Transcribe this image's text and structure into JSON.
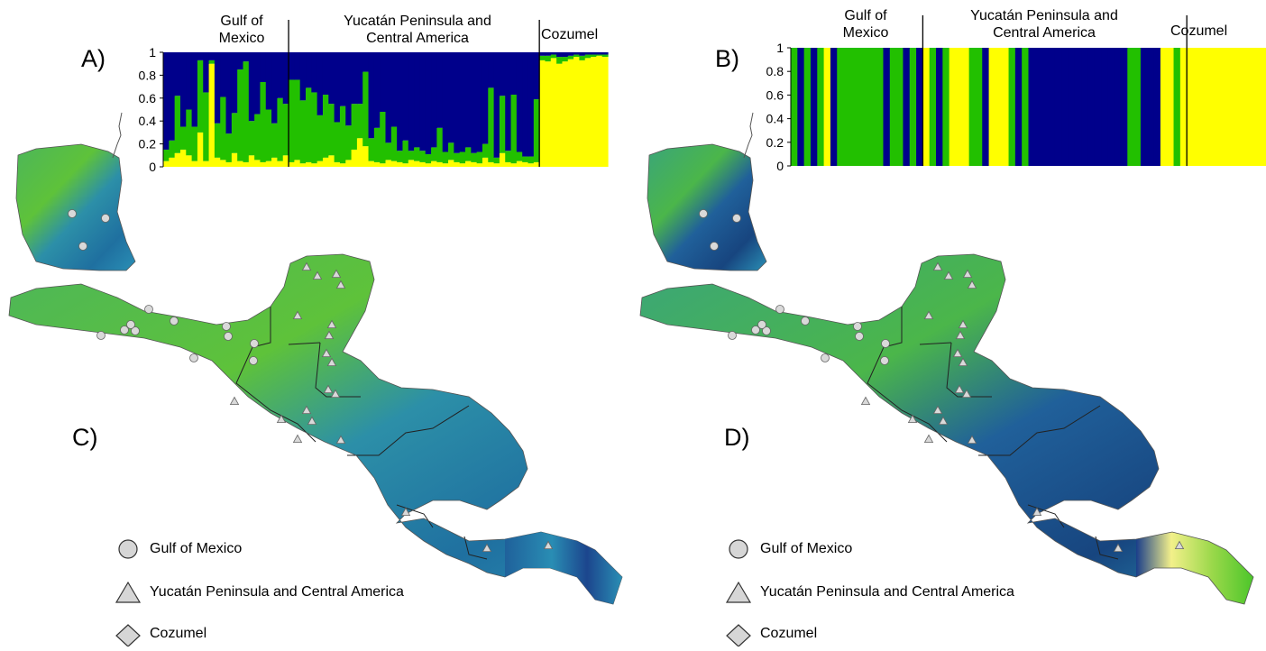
{
  "panels": {
    "a": "A)",
    "b": "B)",
    "c": "C)",
    "d": "D)"
  },
  "region_headers": {
    "gulf": "Gulf of Mexico",
    "yucatan": "Yucatán Peninsula and Central America",
    "cozumel": "Cozumel"
  },
  "legend": [
    {
      "symbol": "circle",
      "label": "Gulf of Mexico"
    },
    {
      "symbol": "triangle",
      "label": "Yucatán Peninsula and Central America"
    },
    {
      "symbol": "diamond",
      "label": "Cozumel"
    }
  ],
  "colors": {
    "cluster_blue": "#00008B",
    "cluster_green": "#22C000",
    "cluster_yellow": "#FFFF00",
    "map_dark": "#0a1e7a",
    "map_teal": "#2a8fb5",
    "map_green": "#4cc62a",
    "map_yellow": "#f5f58a",
    "marker_fill": "#d9d9d9"
  },
  "chart_data": [
    {
      "panel": "A)",
      "type": "bar",
      "stacked": true,
      "ylim": [
        0,
        1
      ],
      "yticks": [
        "0",
        "0.2",
        "0.4",
        "0.6",
        "0.8",
        "1"
      ],
      "groups": [
        {
          "name": "Gulf of Mexico",
          "count": 22
        },
        {
          "name": "Yucatán Peninsula and Central America",
          "count": 44
        },
        {
          "name": "Cozumel",
          "count": 12
        }
      ],
      "series_order": [
        "yellow",
        "green",
        "blue"
      ],
      "yellow": [
        0.05,
        0.08,
        0.12,
        0.15,
        0.1,
        0.05,
        0.3,
        0.05,
        0.9,
        0.08,
        0.06,
        0.04,
        0.12,
        0.05,
        0.04,
        0.1,
        0.06,
        0.04,
        0.05,
        0.08,
        0.05,
        0.1,
        0.04,
        0.06,
        0.03,
        0.04,
        0.03,
        0.05,
        0.08,
        0.1,
        0.04,
        0.03,
        0.06,
        0.15,
        0.25,
        0.18,
        0.05,
        0.04,
        0.03,
        0.06,
        0.05,
        0.04,
        0.03,
        0.06,
        0.05,
        0.04,
        0.03,
        0.05,
        0.04,
        0.03,
        0.06,
        0.04,
        0.03,
        0.05,
        0.04,
        0.03,
        0.08,
        0.04,
        0.03,
        0.12,
        0.04,
        0.03,
        0.05,
        0.04,
        0.03,
        0.04,
        0.93,
        0.92,
        0.95,
        0.9,
        0.92,
        0.94,
        0.96,
        0.93,
        0.95,
        0.96,
        0.97,
        0.96
      ],
      "green": [
        0.1,
        0.15,
        0.5,
        0.2,
        0.4,
        0.3,
        0.63,
        0.6,
        0.03,
        0.3,
        0.55,
        0.25,
        0.35,
        0.8,
        0.88,
        0.3,
        0.4,
        0.7,
        0.45,
        0.3,
        0.55,
        0.45,
        0.72,
        0.7,
        0.55,
        0.65,
        0.62,
        0.4,
        0.55,
        0.45,
        0.35,
        0.5,
        0.3,
        0.4,
        0.3,
        0.65,
        0.2,
        0.3,
        0.45,
        0.15,
        0.3,
        0.1,
        0.2,
        0.08,
        0.12,
        0.1,
        0.08,
        0.12,
        0.3,
        0.1,
        0.15,
        0.08,
        0.1,
        0.12,
        0.08,
        0.1,
        0.12,
        0.65,
        0.05,
        0.5,
        0.1,
        0.6,
        0.08,
        0.05,
        0.06,
        0.55,
        0.04,
        0.05,
        0.03,
        0.06,
        0.04,
        0.03,
        0.02,
        0.04,
        0.03,
        0.02,
        0.01,
        0.02
      ],
      "blue": [
        0.85,
        0.77,
        0.38,
        0.65,
        0.5,
        0.65,
        0.07,
        0.35,
        0.07,
        0.62,
        0.39,
        0.71,
        0.53,
        0.15,
        0.08,
        0.6,
        0.54,
        0.26,
        0.5,
        0.62,
        0.4,
        0.45,
        0.24,
        0.24,
        0.42,
        0.31,
        0.35,
        0.55,
        0.37,
        0.45,
        0.61,
        0.47,
        0.64,
        0.45,
        0.45,
        0.17,
        0.75,
        0.66,
        0.52,
        0.79,
        0.65,
        0.86,
        0.77,
        0.86,
        0.83,
        0.86,
        0.89,
        0.83,
        0.66,
        0.87,
        0.79,
        0.88,
        0.87,
        0.83,
        0.88,
        0.87,
        0.8,
        0.31,
        0.92,
        0.38,
        0.86,
        0.37,
        0.87,
        0.91,
        0.91,
        0.41,
        0.03,
        0.03,
        0.02,
        0.04,
        0.04,
        0.03,
        0.02,
        0.03,
        0.02,
        0.02,
        0.02,
        0.02
      ]
    },
    {
      "panel": "B)",
      "type": "bar",
      "stacked": true,
      "ylim": [
        0,
        1
      ],
      "yticks": [
        "0",
        "0.2",
        "0.4",
        "0.6",
        "0.8",
        "1"
      ],
      "groups": [
        {
          "name": "Gulf of Mexico",
          "count": 20
        },
        {
          "name": "Yucatán Peninsula and Central America",
          "count": 40
        },
        {
          "name": "Cozumel",
          "count": 12
        }
      ],
      "dominant_cluster": [
        "green",
        "blue",
        "green",
        "blue",
        "green",
        "yellow",
        "blue",
        "green",
        "green",
        "green",
        "green",
        "green",
        "green",
        "green",
        "blue",
        "green",
        "green",
        "blue",
        "green",
        "blue",
        "yellow",
        "green",
        "blue",
        "green",
        "yellow",
        "yellow",
        "yellow",
        "green",
        "green",
        "blue",
        "yellow",
        "yellow",
        "yellow",
        "green",
        "blue",
        "green",
        "blue",
        "blue",
        "blue",
        "blue",
        "blue",
        "blue",
        "blue",
        "blue",
        "blue",
        "blue",
        "blue",
        "blue",
        "blue",
        "blue",
        "blue",
        "green",
        "green",
        "blue",
        "blue",
        "blue",
        "yellow",
        "yellow",
        "green",
        "yellow",
        "yellow",
        "yellow",
        "yellow",
        "yellow",
        "yellow",
        "yellow",
        "yellow",
        "yellow",
        "yellow",
        "yellow",
        "yellow",
        "yellow"
      ]
    }
  ],
  "maps": [
    {
      "panel": "C)",
      "gulf_sites": 13,
      "yucatan_sites": 20
    },
    {
      "panel": "D)",
      "gulf_sites": 13,
      "yucatan_sites": 20
    }
  ]
}
